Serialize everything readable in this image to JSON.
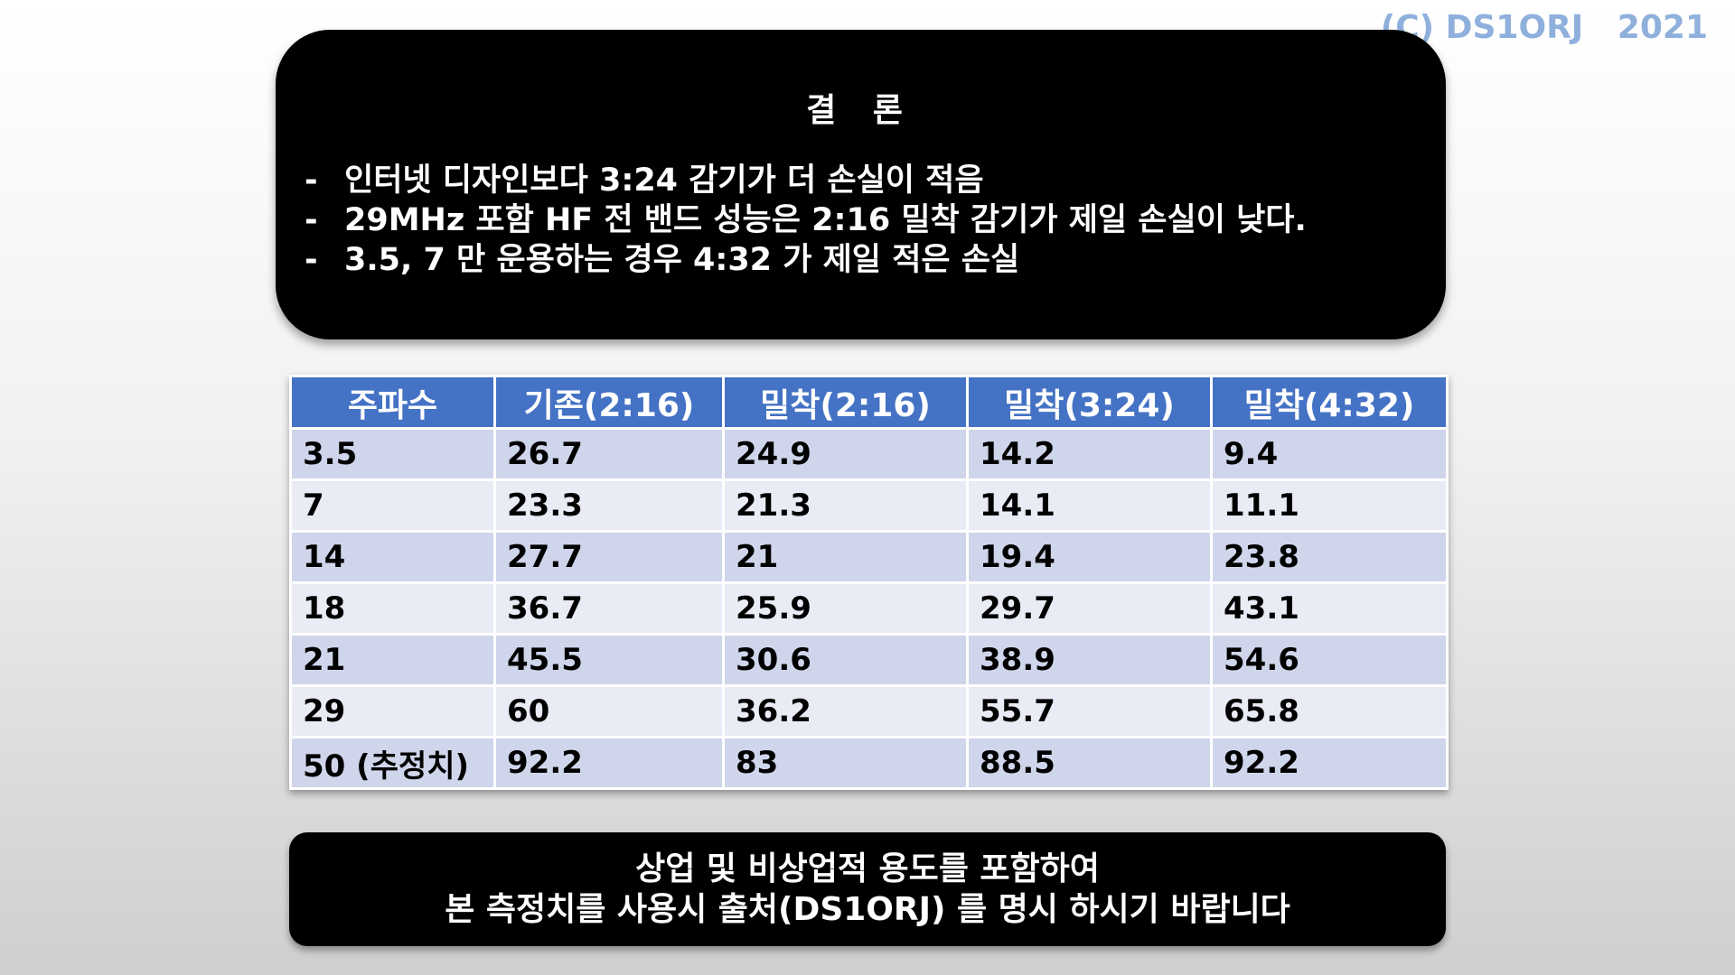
{
  "copyright": "(C) DS1ORJ   2021",
  "conclusion": {
    "title": "결 론",
    "items": [
      {
        "dash": "-",
        "text": "인터넷 디자인보다 3:24 감기가 더 손실이 적음"
      },
      {
        "dash": "-",
        "text": "29MHz 포함 HF 전 밴드 성능은 2:16 밀착 감기가 제일 손실이 낮다."
      },
      {
        "dash": "-",
        "text": "3.5, 7 만 운용하는 경우 4:32 가 제일 적은 손실"
      }
    ]
  },
  "table": {
    "headers": [
      "주파수",
      "기존(2:16)",
      "밀착(2:16)",
      "밀착(3:24)",
      "밀착(4:32)"
    ],
    "rows": [
      [
        "3.5",
        "26.7",
        "24.9",
        "14.2",
        "9.4"
      ],
      [
        "7",
        "23.3",
        "21.3",
        "14.1",
        "11.1"
      ],
      [
        "14",
        "27.7",
        "21",
        "19.4",
        "23.8"
      ],
      [
        "18",
        "36.7",
        "25.9",
        "29.7",
        "43.1"
      ],
      [
        "21",
        "45.5",
        "30.6",
        "38.9",
        "54.6"
      ],
      [
        "29",
        "60",
        "36.2",
        "55.7",
        "65.8"
      ],
      [
        "50 (추정치)",
        "92.2",
        "83",
        "88.5",
        "92.2"
      ]
    ]
  },
  "notice": {
    "line1": "상업 및 비상업적 용도를 포함하여",
    "line2": "본 측정치를 사용시 출처(DS1ORJ) 를 명시 하시기 바랍니다"
  }
}
